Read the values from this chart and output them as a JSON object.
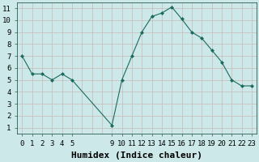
{
  "x_positions": [
    0,
    1,
    2,
    3,
    4,
    5,
    9,
    10,
    11,
    12,
    13,
    14,
    15,
    16,
    17,
    18,
    19,
    20,
    21,
    22,
    23
  ],
  "y": [
    7.0,
    5.5,
    5.5,
    5.0,
    5.5,
    5.0,
    1.2,
    5.0,
    7.0,
    9.0,
    10.3,
    10.6,
    11.1,
    10.1,
    9.0,
    8.5,
    7.5,
    6.5,
    5.0,
    4.5,
    4.5
  ],
  "line_color": "#1a6b5e",
  "marker_color": "#1a6b5e",
  "bg_color": "#cce8e8",
  "grid_color": "#c8b8b8",
  "xlabel": "Humidex (Indice chaleur)",
  "xlabel_fontsize": 8,
  "tick_fontsize": 6.5,
  "xlim": [
    -0.5,
    23.5
  ],
  "ylim": [
    0.5,
    11.5
  ],
  "yticks": [
    1,
    2,
    3,
    4,
    5,
    6,
    7,
    8,
    9,
    10,
    11
  ],
  "xtick_positions": [
    0,
    1,
    2,
    3,
    4,
    5,
    9,
    10,
    11,
    12,
    13,
    14,
    15,
    16,
    17,
    18,
    19,
    20,
    21,
    22,
    23
  ],
  "xtick_labels": [
    "0",
    "1",
    "2",
    "3",
    "4",
    "5",
    "9",
    "10",
    "11",
    "12",
    "13",
    "14",
    "15",
    "16",
    "17",
    "18",
    "19",
    "20",
    "21",
    "22",
    "23"
  ],
  "all_x_grid": [
    0,
    1,
    2,
    3,
    4,
    5,
    6,
    7,
    8,
    9,
    10,
    11,
    12,
    13,
    14,
    15,
    16,
    17,
    18,
    19,
    20,
    21,
    22,
    23
  ]
}
